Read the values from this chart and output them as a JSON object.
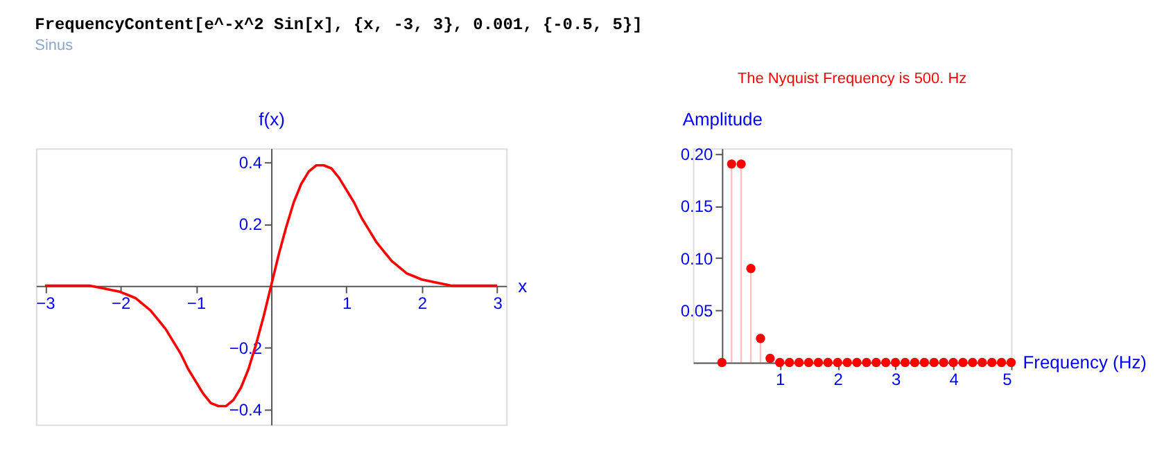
{
  "chart_data": [
    {
      "type": "line",
      "annotations": [
        "FrequencyContent[e^-x^2 Sin[x], {x, -3, 3}, 0.001, {-0.5, 5}]",
        "Sinus"
      ],
      "xlabel": "x",
      "ylabel": "f(x)",
      "xlim": [
        -3.12,
        3.12
      ],
      "ylim": [
        -0.45,
        0.445
      ],
      "xticks": [
        -3,
        -2,
        -1,
        1,
        2,
        3
      ],
      "yticks": [
        -0.4,
        -0.2,
        0.2,
        0.4
      ],
      "grid": false,
      "marker": "none",
      "line_style": "solid",
      "series": [
        {
          "color": "#ff0000",
          "x": [
            -3,
            -2.8,
            -2.6,
            -2.4,
            -2.2,
            -2,
            -1.9,
            -1.8,
            -1.7,
            -1.6,
            -1.5,
            -1.4,
            -1.3,
            -1.2,
            -1.1,
            -1,
            -0.9,
            -0.8,
            -0.7,
            -0.6,
            -0.5,
            -0.4,
            -0.3,
            -0.2,
            -0.1,
            0,
            0.1,
            0.2,
            0.3,
            0.4,
            0.5,
            0.6,
            0.7,
            0.8,
            0.9,
            1,
            1.1,
            1.2,
            1.3,
            1.4,
            1.5,
            1.6,
            1.7,
            1.8,
            1.9,
            2,
            2.2,
            2.4,
            2.6,
            2.8,
            3
          ],
          "values": [
            0,
            0,
            0,
            0,
            -0.01,
            -0.02,
            -0.03,
            -0.04,
            -0.06,
            -0.08,
            -0.11,
            -0.14,
            -0.18,
            -0.22,
            -0.27,
            -0.31,
            -0.35,
            -0.38,
            -0.39,
            -0.39,
            -0.37,
            -0.33,
            -0.27,
            -0.19,
            -0.1,
            0,
            0.1,
            0.19,
            0.27,
            0.33,
            0.37,
            0.39,
            0.39,
            0.38,
            0.35,
            0.31,
            0.27,
            0.22,
            0.18,
            0.14,
            0.11,
            0.08,
            0.06,
            0.04,
            0.03,
            0.02,
            0.01,
            0,
            0,
            0,
            0
          ]
        }
      ]
    },
    {
      "type": "lollipop",
      "title": "The Nyquist Frequency is 500. Hz",
      "xlabel": "Frequency (Hz)",
      "ylabel": "Amplitude",
      "xlim": [
        -0.5,
        5
      ],
      "ylim": [
        0,
        0.205
      ],
      "xticks": [
        1,
        2,
        3,
        4,
        5
      ],
      "yticks": [
        0.05,
        {
          "value": 0.1,
          "label": "0.10"
        },
        0.15,
        {
          "value": 0.2,
          "label": "0.20"
        }
      ],
      "grid": false,
      "marker": "circle",
      "series": [
        {
          "color": "#ff0000",
          "x": [
            0,
            0.167,
            0.333,
            0.5,
            0.667,
            0.833,
            1,
            1.167,
            1.333,
            1.5,
            1.667,
            1.833,
            2,
            2.167,
            2.333,
            2.5,
            2.667,
            2.833,
            3,
            3.167,
            3.333,
            3.5,
            3.667,
            3.833,
            4,
            4.167,
            4.333,
            4.5,
            4.667,
            4.833,
            5
          ],
          "values": [
            0,
            0.19,
            0.19,
            0.09,
            0.023,
            0.004,
            0,
            0,
            0,
            0,
            0,
            0,
            0,
            0,
            0,
            0,
            0,
            0,
            0,
            0,
            0,
            0,
            0,
            0,
            0,
            0,
            0,
            0,
            0,
            0,
            0
          ]
        }
      ]
    }
  ]
}
